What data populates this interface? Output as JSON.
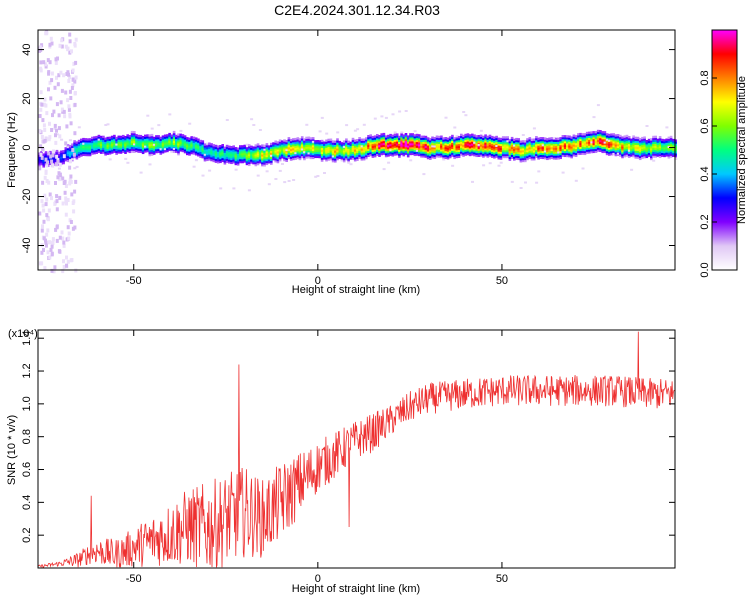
{
  "title": "C2E4.2024.301.12.34.R03",
  "chart_data": [
    {
      "type": "heatmap",
      "xlabel": "Height of straight line (km)",
      "ylabel": "Frequency (Hz)",
      "colorbar_label": "Normalized spectral amplitude",
      "xlim": [
        -76,
        97
      ],
      "ylim": [
        -50,
        48
      ],
      "xticks": [
        -50,
        0,
        50
      ],
      "yticks": [
        -40,
        -20,
        0,
        20,
        40
      ],
      "colorbar_range": [
        0,
        1
      ],
      "colorbar_ticks": [
        0.0,
        0.2,
        0.4,
        0.6,
        0.8
      ],
      "colormap": [
        "#ffffff",
        "#e0c8f5",
        "#8000ff",
        "#0000ff",
        "#00c8ff",
        "#00ff80",
        "#80ff00",
        "#ffff00",
        "#ff8000",
        "#ff0000",
        "#ff00ff"
      ],
      "ridge": {
        "x": [
          -76,
          -70,
          -65,
          -60,
          -55,
          -50,
          -45,
          -40,
          -35,
          -30,
          -25,
          -20,
          -15,
          -10,
          -5,
          0,
          5,
          10,
          15,
          20,
          25,
          30,
          35,
          40,
          45,
          50,
          55,
          60,
          65,
          70,
          75,
          80,
          85,
          90,
          97
        ],
        "freq": [
          -5,
          -4,
          0,
          1,
          1,
          2,
          1,
          2,
          1,
          -2,
          -3,
          -3,
          -3,
          -1,
          0,
          -1,
          -1,
          -1,
          1,
          1,
          1,
          0,
          0,
          1,
          1,
          0,
          -1,
          0,
          0,
          1,
          3,
          1,
          0,
          0,
          0
        ],
        "amplitude": [
          0.3,
          0.3,
          0.5,
          0.55,
          0.55,
          0.6,
          0.55,
          0.6,
          0.5,
          0.5,
          0.5,
          0.55,
          0.7,
          0.7,
          0.65,
          0.65,
          0.7,
          0.7,
          0.85,
          0.95,
          0.95,
          0.85,
          0.8,
          0.85,
          0.9,
          0.8,
          0.75,
          0.8,
          0.8,
          0.8,
          0.85,
          0.8,
          0.7,
          0.65,
          0.6
        ]
      }
    },
    {
      "type": "line",
      "xlabel": "Height of straight line (km)",
      "ylabel": "SNR (10 * v/v)",
      "multiplier": "(x10⁴)",
      "xlim": [
        -76,
        97
      ],
      "ylim": [
        0,
        1.45
      ],
      "xticks": [
        -50,
        0,
        50
      ],
      "yticks": [
        0.2,
        0.4,
        0.6,
        0.8,
        1.0,
        1.2,
        1.4
      ],
      "line_color": "#ee3030",
      "series": [
        {
          "x": [
            -76,
            -70,
            -65,
            -62,
            -60,
            -55,
            -50,
            -45,
            -40,
            -35,
            -30,
            -25,
            -20,
            -15,
            -10,
            -5,
            0,
            5,
            10,
            15,
            20,
            25,
            30,
            40,
            50,
            60,
            70,
            80,
            90,
            97
          ],
          "y": [
            0.01,
            0.03,
            0.06,
            0.1,
            0.12,
            0.1,
            0.15,
            0.2,
            0.25,
            0.3,
            0.3,
            0.35,
            0.4,
            0.35,
            0.45,
            0.55,
            0.65,
            0.72,
            0.8,
            0.85,
            0.92,
            1.0,
            1.05,
            1.08,
            1.1,
            1.1,
            1.1,
            1.1,
            1.08,
            1.08
          ],
          "spread": [
            0.01,
            0.02,
            0.06,
            0.08,
            0.1,
            0.12,
            0.15,
            0.2,
            0.25,
            0.3,
            0.35,
            0.35,
            0.35,
            0.3,
            0.3,
            0.25,
            0.2,
            0.18,
            0.15,
            0.15,
            0.12,
            0.12,
            0.12,
            0.12,
            0.12,
            0.12,
            0.12,
            0.12,
            0.12,
            0.12
          ],
          "peaks": [
            {
              "x": -61.5,
              "y": 0.44
            },
            {
              "x": -21.5,
              "y": 1.24
            },
            {
              "x": 8.5,
              "y": 0.25
            },
            {
              "x": 87,
              "y": 1.44
            }
          ]
        }
      ]
    }
  ]
}
